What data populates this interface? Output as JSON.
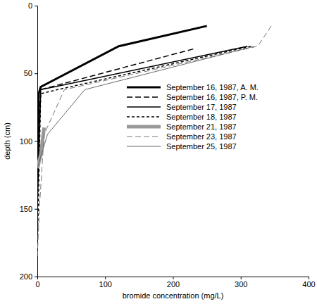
{
  "chart_data": {
    "type": "line",
    "x_label": "bromide concentration (mg/L)",
    "y_label": "depth (cm)",
    "xlim": [
      0,
      400
    ],
    "xticks": [
      0,
      100,
      200,
      300,
      400
    ],
    "ylim": [
      0,
      200
    ],
    "yticks": [
      0,
      50,
      100,
      150,
      200
    ],
    "log": "y_inverted_false",
    "series": [
      {
        "name": "September 16, 1987, A. M.",
        "color": "#000000",
        "line_style": "solid",
        "x": [
          250,
          120,
          5,
          2,
          0
        ],
        "values": [
          15,
          30,
          60,
          65,
          120
        ]
      },
      {
        "name": "September 16, 1987, P. M.",
        "color": "#000000",
        "line_style": "dashed",
        "x": [
          230,
          5,
          0
        ],
        "values": [
          32,
          62,
          120
        ]
      },
      {
        "name": "September 17, 1987",
        "color": "#000000",
        "line_style": "solid",
        "x": [
          310,
          25,
          5,
          0
        ],
        "values": [
          30,
          60,
          62,
          150
        ]
      },
      {
        "name": "September 18, 1987",
        "color": "#000000",
        "line_style": "dashed",
        "x": [
          315,
          30,
          5,
          0
        ],
        "values": [
          30,
          62,
          65,
          180
        ]
      },
      {
        "name": "September 21, 1987",
        "color": "#999999",
        "line_style": "solid",
        "x": [
          10,
          5,
          0
        ],
        "values": [
          90,
          110,
          120
        ]
      },
      {
        "name": "September 23, 1987",
        "color": "#777777",
        "line_style": "dashed",
        "x": [
          345,
          325,
          40,
          10,
          3,
          0
        ],
        "values": [
          15,
          30,
          62,
          95,
          150,
          185
        ]
      },
      {
        "name": "September 25, 1987",
        "color": "#666666",
        "line_style": "solid",
        "x": [
          320,
          70,
          15,
          0
        ],
        "values": [
          30,
          62,
          95,
          120
        ]
      }
    ]
  }
}
